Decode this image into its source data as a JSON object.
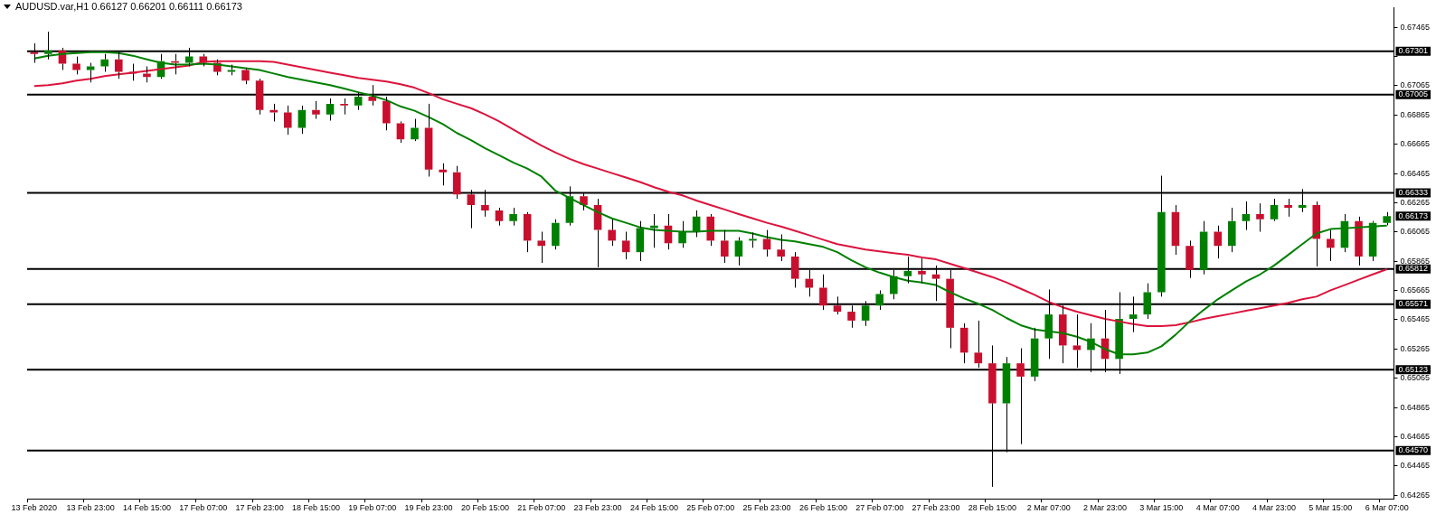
{
  "chart_data": {
    "type": "candlestick",
    "title": "AUDUSD.var,H1  0.66127 0.66201 0.66111 0.66173",
    "categories": [
      "13 Feb 2020",
      null,
      null,
      null,
      "13 Feb 23:00",
      null,
      null,
      null,
      "14 Feb 15:00",
      null,
      null,
      null,
      "17 Feb 07:00",
      null,
      null,
      null,
      "17 Feb 23:00",
      null,
      null,
      null,
      "18 Feb 15:00",
      null,
      null,
      null,
      "19 Feb 07:00",
      null,
      null,
      null,
      "19 Feb 23:00",
      null,
      null,
      null,
      "20 Feb 15:00",
      null,
      null,
      null,
      "21 Feb 07:00",
      null,
      null,
      null,
      "23 Feb 23:00",
      null,
      null,
      null,
      "24 Feb 15:00",
      null,
      null,
      null,
      "25 Feb 07:00",
      null,
      null,
      null,
      "25 Feb 23:00",
      null,
      null,
      null,
      "26 Feb 15:00",
      null,
      null,
      null,
      "27 Feb 07:00",
      null,
      null,
      null,
      "27 Feb 23:00",
      null,
      null,
      null,
      "28 Feb 15:00",
      null,
      null,
      null,
      "2 Mar 07:00",
      null,
      null,
      null,
      "2 Mar 23:00",
      null,
      null,
      null,
      "3 Mar 15:00",
      null,
      null,
      null,
      "4 Mar 07:00",
      null,
      null,
      null,
      "4 Mar 23:00",
      null,
      null,
      null,
      "5 Mar 15:00",
      null,
      null,
      null,
      "6 Mar 07:00"
    ],
    "ohlc": [
      [
        0.67295,
        0.67356,
        0.67222,
        0.67283
      ],
      [
        0.67283,
        0.67435,
        0.67246,
        0.67307
      ],
      [
        0.67307,
        0.67325,
        0.67173,
        0.67216
      ],
      [
        0.67216,
        0.67265,
        0.67143,
        0.67173
      ],
      [
        0.67173,
        0.67222,
        0.67088,
        0.67198
      ],
      [
        0.67198,
        0.67283,
        0.67161,
        0.67246
      ],
      [
        0.67246,
        0.67295,
        0.67113,
        0.67161
      ],
      [
        0.67161,
        0.67216,
        0.671,
        0.67149
      ],
      [
        0.67149,
        0.67198,
        0.67088,
        0.67125
      ],
      [
        0.67125,
        0.67283,
        0.67113,
        0.67234
      ],
      [
        0.67234,
        0.67283,
        0.67143,
        0.67222
      ],
      [
        0.67222,
        0.67325,
        0.67198,
        0.67265
      ],
      [
        0.67265,
        0.67283,
        0.67198,
        0.67222
      ],
      [
        0.67222,
        0.67246,
        0.67137,
        0.67161
      ],
      [
        0.67161,
        0.6721,
        0.67137,
        0.67173
      ],
      [
        0.67173,
        0.67186,
        0.67076,
        0.671
      ],
      [
        0.671,
        0.67113,
        0.66869,
        0.669
      ],
      [
        0.669,
        0.66942,
        0.66821,
        0.66882
      ],
      [
        0.66882,
        0.6693,
        0.6673,
        0.66778
      ],
      [
        0.66778,
        0.6693,
        0.66736,
        0.669
      ],
      [
        0.669,
        0.66961,
        0.66839,
        0.66869
      ],
      [
        0.66869,
        0.66979,
        0.66827,
        0.66942
      ],
      [
        0.66942,
        0.66979,
        0.66869,
        0.6693
      ],
      [
        0.6693,
        0.67021,
        0.669,
        0.66991
      ],
      [
        0.66991,
        0.6707,
        0.6693,
        0.66961
      ],
      [
        0.66961,
        0.66991,
        0.6676,
        0.66809
      ],
      [
        0.66809,
        0.66821,
        0.66675,
        0.66699
      ],
      [
        0.66699,
        0.66839,
        0.66687,
        0.66778
      ],
      [
        0.66778,
        0.66942,
        0.66444,
        0.66492
      ],
      [
        0.66492,
        0.66535,
        0.66383,
        0.66474
      ],
      [
        0.66474,
        0.66517,
        0.66292,
        0.66322
      ],
      [
        0.66322,
        0.66353,
        0.66091,
        0.66249
      ],
      [
        0.66249,
        0.66353,
        0.6617,
        0.66213
      ],
      [
        0.66213,
        0.66231,
        0.66109,
        0.6614
      ],
      [
        0.6614,
        0.66231,
        0.66109,
        0.66188
      ],
      [
        0.66188,
        0.66201,
        0.65927,
        0.66006
      ],
      [
        0.66006,
        0.66067,
        0.65854,
        0.6597
      ],
      [
        0.6597,
        0.66152,
        0.65945,
        0.66128
      ],
      [
        0.66128,
        0.66377,
        0.66109,
        0.6631
      ],
      [
        0.6631,
        0.66334,
        0.66213,
        0.66249
      ],
      [
        0.66249,
        0.66292,
        0.65824,
        0.66079
      ],
      [
        0.66079,
        0.66152,
        0.6597,
        0.66006
      ],
      [
        0.66006,
        0.66067,
        0.65878,
        0.65927
      ],
      [
        0.65927,
        0.6614,
        0.65866,
        0.66091
      ],
      [
        0.66091,
        0.66188,
        0.65957,
        0.66109
      ],
      [
        0.66109,
        0.66188,
        0.65945,
        0.65988
      ],
      [
        0.65988,
        0.6614,
        0.65957,
        0.66067
      ],
      [
        0.66067,
        0.66213,
        0.6603,
        0.6617
      ],
      [
        0.6617,
        0.66188,
        0.6597,
        0.66006
      ],
      [
        0.66006,
        0.66079,
        0.65854,
        0.65897
      ],
      [
        0.65897,
        0.6603,
        0.65836,
        0.66006
      ],
      [
        0.66006,
        0.66061,
        0.65957,
        0.66018
      ],
      [
        0.66018,
        0.66079,
        0.65897,
        0.65945
      ],
      [
        0.65945,
        0.66049,
        0.65866,
        0.65897
      ],
      [
        0.65897,
        0.65927,
        0.65684,
        0.65745
      ],
      [
        0.65745,
        0.65805,
        0.65623,
        0.65684
      ],
      [
        0.65684,
        0.65775,
        0.65532,
        0.65562
      ],
      [
        0.65562,
        0.65623,
        0.65501,
        0.6552
      ],
      [
        0.6552,
        0.65562,
        0.6541,
        0.65459
      ],
      [
        0.65459,
        0.65593,
        0.65422,
        0.65562
      ],
      [
        0.65562,
        0.65666,
        0.65532,
        0.65641
      ],
      [
        0.65641,
        0.65805,
        0.65605,
        0.65763
      ],
      [
        0.65763,
        0.65897,
        0.65714,
        0.65799
      ],
      [
        0.65799,
        0.65884,
        0.65714,
        0.65775
      ],
      [
        0.65775,
        0.65836,
        0.65593,
        0.65745
      ],
      [
        0.65745,
        0.65805,
        0.6527,
        0.6541
      ],
      [
        0.6541,
        0.65441,
        0.65167,
        0.6524
      ],
      [
        0.6524,
        0.65459,
        0.65137,
        0.65167
      ],
      [
        0.65167,
        0.65289,
        0.64322,
        0.64893
      ],
      [
        0.64893,
        0.6521,
        0.64559,
        0.65167
      ],
      [
        0.65167,
        0.6527,
        0.64614,
        0.65076
      ],
      [
        0.65076,
        0.6541,
        0.65045,
        0.65337
      ],
      [
        0.65337,
        0.65672,
        0.65197,
        0.65501
      ],
      [
        0.65501,
        0.65562,
        0.65167,
        0.65289
      ],
      [
        0.65289,
        0.65501,
        0.65137,
        0.65258
      ],
      [
        0.65258,
        0.65441,
        0.65106,
        0.65337
      ],
      [
        0.65337,
        0.65532,
        0.65106,
        0.65197
      ],
      [
        0.65197,
        0.65653,
        0.65094,
        0.65471
      ],
      [
        0.65471,
        0.65623,
        0.6538,
        0.65501
      ],
      [
        0.65501,
        0.65714,
        0.65471,
        0.65653
      ],
      [
        0.65653,
        0.6645,
        0.65623,
        0.66201
      ],
      [
        0.66201,
        0.66249,
        0.65909,
        0.6597
      ],
      [
        0.6597,
        0.66006,
        0.65751,
        0.65805
      ],
      [
        0.65805,
        0.6614,
        0.65775,
        0.66067
      ],
      [
        0.66067,
        0.66109,
        0.65884,
        0.6597
      ],
      [
        0.6597,
        0.66231,
        0.65927,
        0.6614
      ],
      [
        0.6614,
        0.66274,
        0.66079,
        0.66188
      ],
      [
        0.66188,
        0.66261,
        0.66067,
        0.66152
      ],
      [
        0.66152,
        0.66292,
        0.6614,
        0.66249
      ],
      [
        0.66249,
        0.66292,
        0.6617,
        0.66231
      ],
      [
        0.66231,
        0.66359,
        0.66201,
        0.66249
      ],
      [
        0.66249,
        0.66274,
        0.6583,
        0.66018
      ],
      [
        0.66018,
        0.66079,
        0.65866,
        0.65957
      ],
      [
        0.65957,
        0.66188,
        0.65927,
        0.6614
      ],
      [
        0.6614,
        0.6617,
        0.65836,
        0.65897
      ],
      [
        0.65897,
        0.6614,
        0.65866,
        0.66128
      ],
      [
        0.66127,
        0.66201,
        0.66111,
        0.66173
      ]
    ],
    "colors": [
      "#c8102e",
      "#008000",
      "#c8102e",
      "#c8102e",
      "#008000",
      "#008000",
      "#c8102e",
      "#c8102e",
      "#c8102e",
      "#008000",
      "#c8102e",
      "#008000",
      "#c8102e",
      "#c8102e",
      "#008000",
      "#c8102e",
      "#c8102e",
      "#c8102e",
      "#c8102e",
      "#008000",
      "#c8102e",
      "#008000",
      "#c8102e",
      "#008000",
      "#c8102e",
      "#c8102e",
      "#c8102e",
      "#008000",
      "#c8102e",
      "#c8102e",
      "#c8102e",
      "#c8102e",
      "#c8102e",
      "#c8102e",
      "#008000",
      "#c8102e",
      "#c8102e",
      "#008000",
      "#008000",
      "#c8102e",
      "#c8102e",
      "#c8102e",
      "#c8102e",
      "#008000",
      "#008000",
      "#c8102e",
      "#008000",
      "#008000",
      "#c8102e",
      "#c8102e",
      "#008000",
      "#008000",
      "#c8102e",
      "#c8102e",
      "#c8102e",
      "#c8102e",
      "#c8102e",
      "#c8102e",
      "#c8102e",
      "#008000",
      "#008000",
      "#008000",
      "#008000",
      "#c8102e",
      "#c8102e",
      "#c8102e",
      "#c8102e",
      "#c8102e",
      "#c8102e",
      "#008000",
      "#c8102e",
      "#008000",
      "#008000",
      "#c8102e",
      "#c8102e",
      "#008000",
      "#c8102e",
      "#008000",
      "#008000",
      "#008000",
      "#008000",
      "#c8102e",
      "#c8102e",
      "#008000",
      "#c8102e",
      "#008000",
      "#008000",
      "#c8102e",
      "#008000",
      "#c8102e",
      "#008000",
      "#c8102e",
      "#c8102e",
      "#008000",
      "#c8102e",
      "#008000",
      "#008000"
    ],
    "series": [
      {
        "type": "line",
        "color": "#008000",
        "values": [
          0.67252,
          0.67271,
          0.67283,
          0.67289,
          0.67295,
          0.67295,
          0.67289,
          0.67271,
          0.67246,
          0.67222,
          0.6721,
          0.6721,
          0.67216,
          0.6721,
          0.67198,
          0.67186,
          0.67173,
          0.67149,
          0.67125,
          0.67107,
          0.67088,
          0.6707,
          0.67046,
          0.67021,
          0.66997,
          0.66967,
          0.66924,
          0.66894,
          0.66851,
          0.66803,
          0.66742,
          0.66693,
          0.66638,
          0.6659,
          0.66541,
          0.66499,
          0.66444,
          0.66347,
          0.66298,
          0.66249,
          0.66201,
          0.66158,
          0.66128,
          0.66097,
          0.66079,
          0.66073,
          0.66067,
          0.66067,
          0.66073,
          0.66073,
          0.66073,
          0.66055,
          0.6603,
          0.66012,
          0.66,
          0.65982,
          0.65963,
          0.65927,
          0.65872,
          0.65824,
          0.65787,
          0.65757,
          0.65732,
          0.6572,
          0.65702,
          0.65653,
          0.65611,
          0.65574,
          0.65532,
          0.65477,
          0.65428,
          0.65398,
          0.65386,
          0.65374,
          0.65349,
          0.65313,
          0.65264,
          0.65228,
          0.65228,
          0.6524,
          0.65283,
          0.65362,
          0.65453,
          0.65532,
          0.65605,
          0.65666,
          0.65726,
          0.65775,
          0.65836,
          0.65909,
          0.65982,
          0.66055,
          0.66085,
          0.66091,
          0.66097,
          0.66103,
          0.66109
        ]
      },
      {
        "type": "line",
        "color": "#dc143c",
        "values": [
          0.67064,
          0.6707,
          0.67082,
          0.671,
          0.67113,
          0.67131,
          0.67143,
          0.67155,
          0.67167,
          0.67179,
          0.67192,
          0.67204,
          0.67228,
          0.67234,
          0.67234,
          0.67234,
          0.67234,
          0.67228,
          0.6721,
          0.67192,
          0.67173,
          0.67155,
          0.67137,
          0.67119,
          0.67107,
          0.67094,
          0.67076,
          0.67052,
          0.67015,
          0.66973,
          0.66942,
          0.66912,
          0.66869,
          0.66821,
          0.66766,
          0.66711,
          0.66657,
          0.66608,
          0.66565,
          0.66529,
          0.66499,
          0.66468,
          0.66438,
          0.66407,
          0.66371,
          0.6634,
          0.66316,
          0.6628,
          0.66249,
          0.66219,
          0.66188,
          0.66158,
          0.66128,
          0.66103,
          0.66073,
          0.66043,
          0.66012,
          0.65982,
          0.65963,
          0.65945,
          0.65933,
          0.65921,
          0.65909,
          0.65891,
          0.65878,
          0.65848,
          0.65818,
          0.65787,
          0.65757,
          0.6572,
          0.65678,
          0.65635,
          0.65587,
          0.6555,
          0.6552,
          0.65495,
          0.65471,
          0.65453,
          0.65435,
          0.65422,
          0.65422,
          0.65428,
          0.65447,
          0.65471,
          0.65489,
          0.65507,
          0.65526,
          0.65544,
          0.65562,
          0.6558,
          0.65605,
          0.65623,
          0.65666,
          0.65702,
          0.65739,
          0.65775,
          0.65811
        ]
      }
    ],
    "ylim": [
      0.6424,
      0.676
    ],
    "yticks": [
      0.64265,
      0.64465,
      0.64665,
      0.64865,
      0.65065,
      0.65265,
      0.65465,
      0.65665,
      0.65865,
      0.66065,
      0.66265,
      0.66465,
      0.66665,
      0.66865,
      0.67065,
      {
        "value": 0.67265,
        "label": null
      },
      0.67465
    ],
    "ref_lines": [
      {
        "axis": "y",
        "value": 0.67301,
        "label": "0.67301",
        "color": "#000000"
      },
      {
        "axis": "y",
        "value": 0.67005,
        "label": "0.67005",
        "color": "#000000"
      },
      {
        "axis": "y",
        "value": 0.66333,
        "label": "0.66333",
        "color": "#000000"
      },
      {
        "axis": "y",
        "value": 0.65812,
        "label": "0.65812",
        "color": "#000000"
      },
      {
        "axis": "y",
        "value": 0.65571,
        "label": "0.65571",
        "color": "#000000"
      },
      {
        "axis": "y",
        "value": 0.65123,
        "label": "0.65123",
        "color": "#000000"
      },
      {
        "axis": "y",
        "value": 0.6457,
        "label": "0.64570",
        "color": "#000000"
      }
    ],
    "annotations": [
      "0.66173"
    ],
    "marker": "none"
  }
}
